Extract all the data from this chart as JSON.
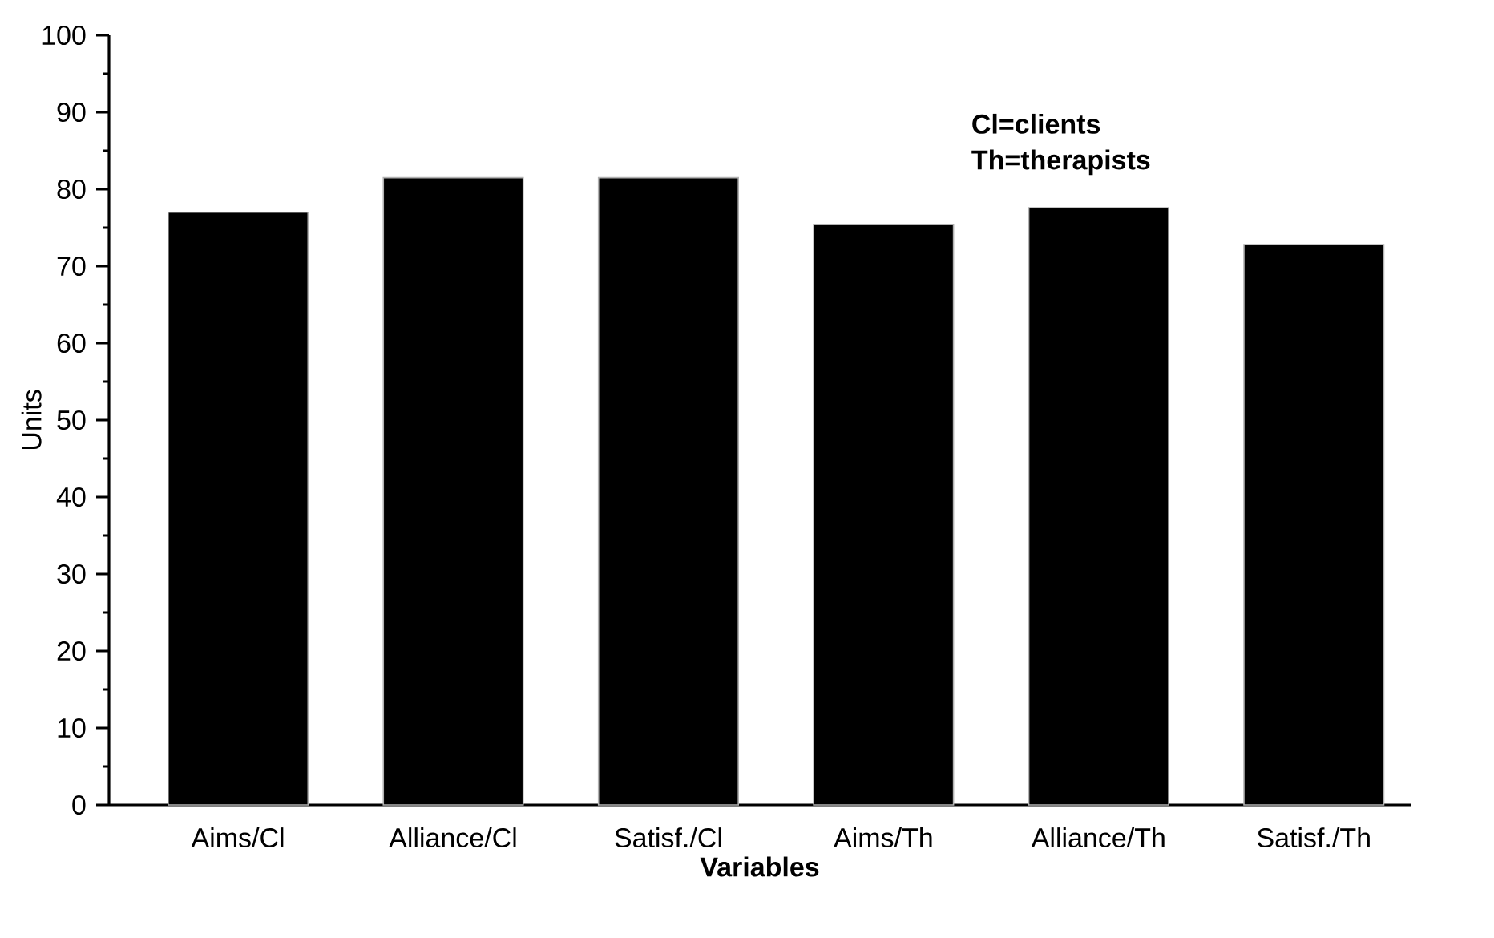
{
  "chart_data": {
    "type": "bar",
    "xlabel": "Variables",
    "ylabel": "Units",
    "categories": [
      "Aims/Cl",
      "Alliance/Cl",
      "Satisf./Cl",
      "Aims/Th",
      "Alliance/Th",
      "Satisf./Th"
    ],
    "values": [
      77.0,
      81.5,
      81.5,
      75.4,
      77.6,
      72.8
    ],
    "color": "#000000",
    "ylim": [
      0,
      100
    ],
    "yticks": [
      0,
      10,
      20,
      30,
      40,
      50,
      60,
      70,
      80,
      90,
      100
    ],
    "grid": false,
    "annotations": [
      "Cl=clients",
      "Th=therapists"
    ]
  }
}
